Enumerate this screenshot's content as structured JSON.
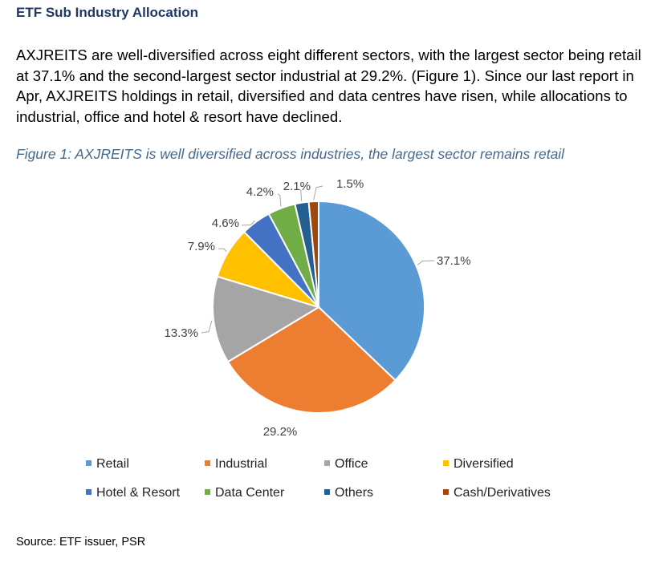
{
  "heading": "ETF Sub Industry Allocation",
  "paragraph": "AXJREITS are well-diversified across eight different sectors, with the largest sector being retail at 37.1% and the second-largest sector industrial at 29.2%. (Figure 1). Since our last report in Apr, AXJREITS holdings in retail, diversified and data centres have risen, while allocations to industrial, office and hotel & resort have declined.",
  "caption": "Figure 1: AXJREITS is well diversified across industries, the largest sector remains retail",
  "source": "Source: ETF issuer, PSR",
  "chart_data": {
    "type": "pie",
    "title": "",
    "legend_position": "bottom",
    "slices": [
      {
        "name": "Retail",
        "value": 37.1,
        "label": "37.1%",
        "color": "#5b9bd5"
      },
      {
        "name": "Industrial",
        "value": 29.2,
        "label": "29.2%",
        "color": "#ed7d31"
      },
      {
        "name": "Office",
        "value": 13.3,
        "label": "13.3%",
        "color": "#a5a5a5"
      },
      {
        "name": "Diversified",
        "value": 7.9,
        "label": "7.9%",
        "color": "#ffc000"
      },
      {
        "name": "Hotel & Resort",
        "value": 4.6,
        "label": "4.6%",
        "color": "#4472c4"
      },
      {
        "name": "Data Center",
        "value": 4.2,
        "label": "4.2%",
        "color": "#70ad47"
      },
      {
        "name": "Others",
        "value": 2.1,
        "label": "2.1%",
        "color": "#255e91"
      },
      {
        "name": "Cash/Derivatives",
        "value": 1.5,
        "label": "1.5%",
        "color": "#9e480e"
      }
    ]
  }
}
